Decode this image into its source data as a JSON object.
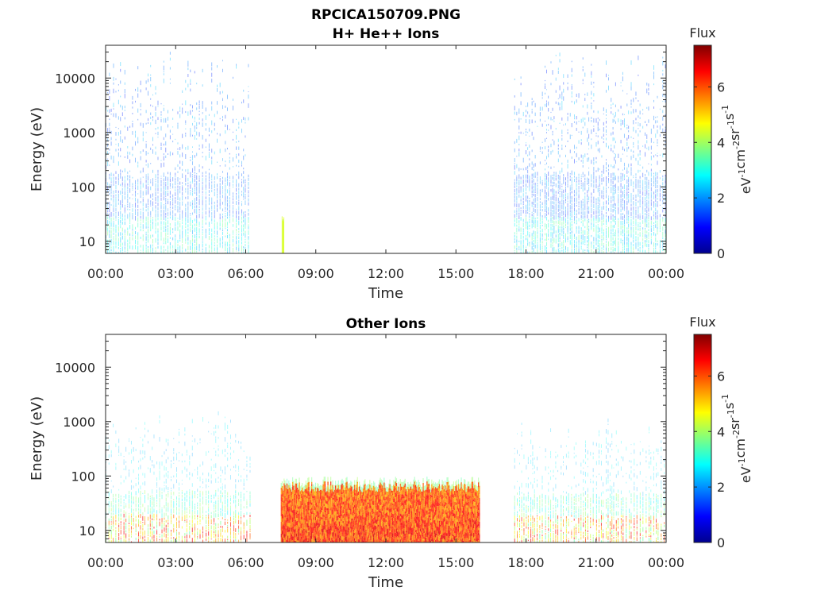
{
  "figure": {
    "title": "RPCICA150709.PNG"
  },
  "colorbar": {
    "title": "Flux",
    "label_parts": [
      "eV",
      "-1",
      "cm",
      "-2",
      "sr",
      "-1",
      "s",
      "-1"
    ],
    "range": [
      0,
      7.5
    ],
    "ticks": [
      "0",
      "2",
      "4",
      "6"
    ],
    "colormap": "jet"
  },
  "chart_data": [
    {
      "type": "heatmap",
      "title": "H+ He++ Ions",
      "xlabel": "Time",
      "ylabel": "Energy (eV)",
      "x_ticks": [
        "00:00",
        "03:00",
        "06:00",
        "09:00",
        "12:00",
        "15:00",
        "18:00",
        "21:00",
        "00:00"
      ],
      "x_range_hours": [
        0,
        24
      ],
      "y_scale": "log",
      "y_range": [
        6,
        40000
      ],
      "y_ticks": [
        "10",
        "100",
        "1000",
        "10000"
      ],
      "colorbar_ref": "Flux",
      "segments": [
        {
          "start_hour": 0.0,
          "end_hour": 6.2,
          "energy_range": [
            6,
            35000
          ],
          "flux_range": [
            1.5,
            3.0
          ],
          "fill": "sparse-streaks"
        },
        {
          "start_hour": 7.5,
          "end_hour": 7.7,
          "energy_range": [
            6,
            30
          ],
          "flux_range": [
            4.0,
            4.5
          ],
          "fill": "single-streak"
        },
        {
          "start_hour": 17.5,
          "end_hour": 24.0,
          "energy_range": [
            6,
            35000
          ],
          "flux_range": [
            1.5,
            3.0
          ],
          "fill": "dense-streaks"
        }
      ]
    },
    {
      "type": "heatmap",
      "title": "Other Ions",
      "xlabel": "Time",
      "ylabel": "Energy (eV)",
      "x_ticks": [
        "00:00",
        "03:00",
        "06:00",
        "09:00",
        "12:00",
        "15:00",
        "18:00",
        "21:00",
        "00:00"
      ],
      "x_range_hours": [
        0,
        24
      ],
      "y_scale": "log",
      "y_range": [
        6,
        40000
      ],
      "y_ticks": [
        "10",
        "100",
        "1000",
        "10000"
      ],
      "colorbar_ref": "Flux",
      "segments": [
        {
          "start_hour": 0.0,
          "end_hour": 6.2,
          "energy_range": [
            6,
            1600
          ],
          "flux_range": [
            2.0,
            6.5
          ],
          "fill": "streaks"
        },
        {
          "start_hour": 7.5,
          "end_hour": 16.0,
          "energy_range": [
            6,
            80
          ],
          "flux_range": [
            4.5,
            7.0
          ],
          "fill": "dense-band"
        },
        {
          "start_hour": 17.5,
          "end_hour": 24.0,
          "energy_range": [
            6,
            1200
          ],
          "flux_range": [
            2.0,
            6.5
          ],
          "fill": "streaks"
        }
      ]
    }
  ]
}
